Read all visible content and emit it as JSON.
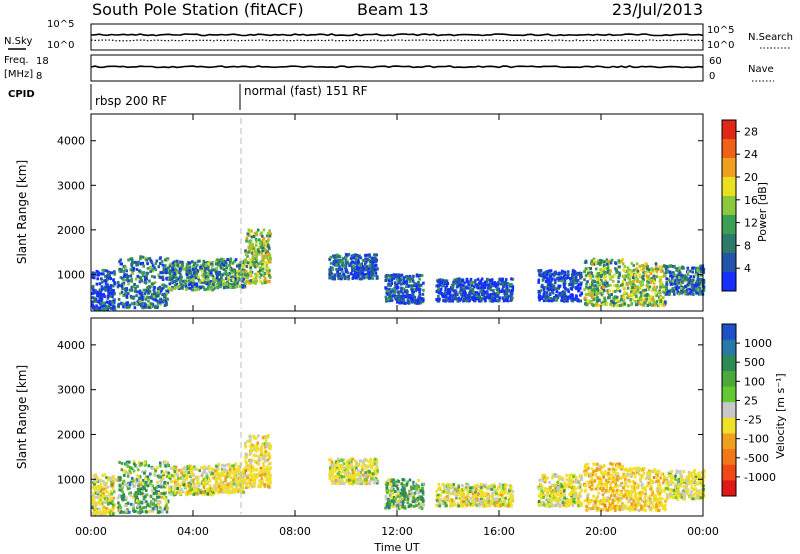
{
  "header": {
    "title": "South Pole Station (fitACF)",
    "beam": "Beam 13",
    "date": "23/Jul/2013"
  },
  "panels": {
    "nsky": {
      "label": "N.Sky",
      "right_label": "N.Search",
      "ticks_left": [
        "10^5",
        "10^0"
      ],
      "ticks_right": [
        "10^5",
        "10^0"
      ]
    },
    "freq": {
      "label_line1": "Freq.",
      "label_line2": "[MHz]",
      "right_label": "Nave",
      "ticks_left": [
        "18",
        "8"
      ],
      "ticks_right": [
        "60",
        "0"
      ]
    },
    "cpid": {
      "label": "CPID",
      "segments": [
        "rbsp 200 RF",
        "normal (fast) 151 RF"
      ]
    }
  },
  "colors": {
    "power_scale": [
      "#1530ff",
      "#2255aa",
      "#2d7a6a",
      "#3a9e55",
      "#8cc83c",
      "#e8e020",
      "#f0a020",
      "#f06018",
      "#e02818"
    ],
    "velocity_scale": [
      "#1e50c8",
      "#2878aa",
      "#2d8a55",
      "#4ca83c",
      "#64c832",
      "#c8c8c8",
      "#f0e028",
      "#f0a020",
      "#f07818",
      "#f04818",
      "#e01818"
    ]
  },
  "chart_data": [
    {
      "type": "heatmap",
      "title": "Power",
      "xlabel": "",
      "ylabel": "Slant Range [km]",
      "x_ticks": [
        "00:00",
        "04:00",
        "08:00",
        "12:00",
        "16:00",
        "20:00",
        "00:00"
      ],
      "y_ticks": [
        "1000",
        "2000",
        "3000",
        "4000"
      ],
      "ylim": [
        180,
        4600
      ],
      "colorbar": {
        "label": "Power [dB]",
        "ticks": [
          "4",
          "8",
          "12",
          "16",
          "20",
          "24",
          "28"
        ],
        "range": [
          0,
          30
        ]
      },
      "scatter_regions": [
        {
          "t_start": 0.0,
          "t_end": 0.9,
          "range_low": 200,
          "range_high": 1100,
          "value": 6
        },
        {
          "t_start": 1.0,
          "t_end": 3.0,
          "range_low": 250,
          "range_high": 1400,
          "value": 10
        },
        {
          "t_start": 3.0,
          "t_end": 4.8,
          "range_low": 650,
          "range_high": 1300,
          "value": 12
        },
        {
          "t_start": 4.8,
          "t_end": 6.0,
          "range_low": 700,
          "range_high": 1350,
          "value": 14
        },
        {
          "t_start": 6.0,
          "t_end": 7.0,
          "range_low": 800,
          "range_high": 2000,
          "value": 18
        },
        {
          "t_start": 9.3,
          "t_end": 11.2,
          "range_low": 900,
          "range_high": 1450,
          "value": 8
        },
        {
          "t_start": 11.5,
          "t_end": 13.0,
          "range_low": 350,
          "range_high": 1000,
          "value": 7
        },
        {
          "t_start": 13.5,
          "t_end": 16.5,
          "range_low": 400,
          "range_high": 900,
          "value": 6
        },
        {
          "t_start": 17.5,
          "t_end": 19.2,
          "range_low": 400,
          "range_high": 1100,
          "value": 6
        },
        {
          "t_start": 19.3,
          "t_end": 20.8,
          "range_low": 300,
          "range_high": 1350,
          "value": 16
        },
        {
          "t_start": 20.8,
          "t_end": 22.5,
          "range_low": 300,
          "range_high": 1250,
          "value": 18
        },
        {
          "t_start": 22.5,
          "t_end": 24.0,
          "range_low": 550,
          "range_high": 1200,
          "value": 10
        }
      ]
    },
    {
      "type": "heatmap",
      "title": "Velocity",
      "xlabel": "Time UT",
      "ylabel": "Slant Range [km]",
      "x_ticks": [
        "00:00",
        "04:00",
        "08:00",
        "12:00",
        "16:00",
        "20:00",
        "00:00"
      ],
      "y_ticks": [
        "1000",
        "2000",
        "3000",
        "4000"
      ],
      "ylim": [
        180,
        4600
      ],
      "colorbar": {
        "label": "Velocity [m s⁻¹]",
        "ticks": [
          "1000",
          "500",
          "100",
          "25",
          "-25",
          "-100",
          "-500",
          "-1000"
        ]
      },
      "scatter_regions": [
        {
          "t_start": 0.0,
          "t_end": 0.9,
          "range_low": 200,
          "range_high": 1100,
          "value": -200
        },
        {
          "t_start": 1.0,
          "t_end": 3.0,
          "range_low": 250,
          "range_high": 1400,
          "value": 60
        },
        {
          "t_start": 3.0,
          "t_end": 4.8,
          "range_low": 650,
          "range_high": 1300,
          "value": -150
        },
        {
          "t_start": 4.8,
          "t_end": 6.0,
          "range_low": 700,
          "range_high": 1350,
          "value": -250
        },
        {
          "t_start": 6.0,
          "t_end": 7.0,
          "range_low": 800,
          "range_high": 2000,
          "value": -300
        },
        {
          "t_start": 9.3,
          "t_end": 11.2,
          "range_low": 900,
          "range_high": 1450,
          "value": -200
        },
        {
          "t_start": 11.5,
          "t_end": 13.0,
          "range_low": 350,
          "range_high": 1000,
          "value": 80
        },
        {
          "t_start": 13.5,
          "t_end": 16.5,
          "range_low": 400,
          "range_high": 900,
          "value": -150
        },
        {
          "t_start": 17.5,
          "t_end": 19.2,
          "range_low": 400,
          "range_high": 1100,
          "value": -200
        },
        {
          "t_start": 19.3,
          "t_end": 20.8,
          "range_low": 300,
          "range_high": 1350,
          "value": -400
        },
        {
          "t_start": 20.8,
          "t_end": 22.5,
          "range_low": 300,
          "range_high": 1250,
          "value": -350
        },
        {
          "t_start": 22.5,
          "t_end": 24.0,
          "range_low": 550,
          "range_high": 1200,
          "value": -200
        }
      ]
    }
  ]
}
